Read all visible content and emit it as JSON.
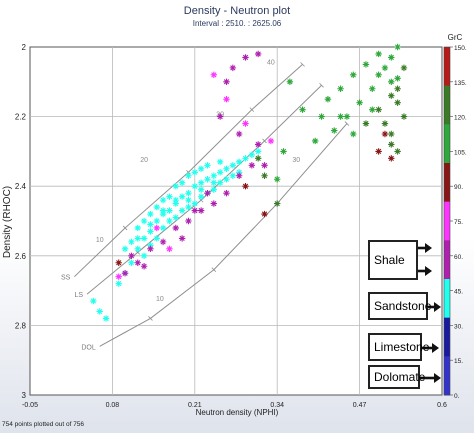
{
  "chart_data": {
    "type": "scatter",
    "title": "Density - Neutron plot",
    "subtitle": "Interval : 2510. : 2625.06",
    "xlabel": "Neutron density (NPHI)",
    "ylabel": "Density (RHOC)",
    "xlim": [
      -0.05,
      0.6
    ],
    "ylim": [
      3,
      2
    ],
    "x_ticks": [
      "-0.05",
      "0.08",
      "0.21",
      "0.34",
      "0.47",
      "0.6"
    ],
    "y_ticks": [
      "2",
      "2.2",
      "2.4",
      "2.6",
      "2.8",
      "3"
    ],
    "grid": true,
    "footer": "754 points plotted out of 756",
    "color_scale": {
      "label": "GrC",
      "ticks": [
        "150.",
        "135.",
        "120.",
        "105.",
        "90.",
        "75.",
        "60.",
        "45.",
        "30.",
        "15.",
        "0."
      ],
      "colors": [
        "#b81a1a",
        "#3a7b26",
        "#2ea83a",
        "#8a1515",
        "#ff33ff",
        "#b020b0",
        "#22ffee",
        "#1a1aa0",
        "#3333cc"
      ]
    },
    "lithology_lines": [
      {
        "name": "SS",
        "points": [
          [
            0.02,
            2.66
          ],
          [
            0.1,
            2.52
          ],
          [
            0.2,
            2.36
          ],
          [
            0.3,
            2.18
          ],
          [
            0.38,
            2.05
          ]
        ]
      },
      {
        "name": "LS",
        "points": [
          [
            0.04,
            2.71
          ],
          [
            0.12,
            2.59
          ],
          [
            0.22,
            2.44
          ],
          [
            0.32,
            2.27
          ],
          [
            0.41,
            2.11
          ]
        ]
      },
      {
        "name": "DOL",
        "points": [
          [
            0.06,
            2.86
          ],
          [
            0.14,
            2.78
          ],
          [
            0.24,
            2.64
          ],
          [
            0.34,
            2.45
          ],
          [
            0.45,
            2.22
          ]
        ]
      }
    ],
    "porosity_labels": [
      {
        "text": "10",
        "x": 0.06,
        "y": 2.56
      },
      {
        "text": "20",
        "x": 0.13,
        "y": 2.33
      },
      {
        "text": "30",
        "x": 0.25,
        "y": 2.2
      },
      {
        "text": "40",
        "x": 0.33,
        "y": 2.05
      },
      {
        "text": "10",
        "x": 0.155,
        "y": 2.73
      },
      {
        "text": "30",
        "x": 0.37,
        "y": 2.33
      }
    ],
    "series": [
      {
        "name": "",
        "color": "#22ffee",
        "points": [
          [
            0.05,
            2.73
          ],
          [
            0.06,
            2.76
          ],
          [
            0.07,
            2.78
          ],
          [
            0.09,
            2.68
          ],
          [
            0.1,
            2.65
          ],
          [
            0.11,
            2.62
          ],
          [
            0.12,
            2.58
          ],
          [
            0.13,
            2.6
          ],
          [
            0.13,
            2.55
          ],
          [
            0.14,
            2.53
          ],
          [
            0.14,
            2.57
          ],
          [
            0.15,
            2.5
          ],
          [
            0.15,
            2.55
          ],
          [
            0.16,
            2.48
          ],
          [
            0.16,
            2.52
          ],
          [
            0.17,
            2.47
          ],
          [
            0.17,
            2.5
          ],
          [
            0.18,
            2.44
          ],
          [
            0.18,
            2.49
          ],
          [
            0.19,
            2.43
          ],
          [
            0.19,
            2.47
          ],
          [
            0.2,
            2.42
          ],
          [
            0.2,
            2.46
          ],
          [
            0.21,
            2.4
          ],
          [
            0.21,
            2.45
          ],
          [
            0.22,
            2.39
          ],
          [
            0.22,
            2.43
          ],
          [
            0.23,
            2.38
          ],
          [
            0.23,
            2.42
          ],
          [
            0.24,
            2.37
          ],
          [
            0.24,
            2.41
          ],
          [
            0.25,
            2.36
          ],
          [
            0.25,
            2.39
          ],
          [
            0.26,
            2.35
          ],
          [
            0.26,
            2.38
          ],
          [
            0.27,
            2.34
          ],
          [
            0.27,
            2.37
          ],
          [
            0.28,
            2.33
          ],
          [
            0.28,
            2.36
          ],
          [
            0.29,
            2.32
          ],
          [
            0.3,
            2.31
          ],
          [
            0.31,
            2.3
          ],
          [
            0.12,
            2.52
          ],
          [
            0.14,
            2.48
          ],
          [
            0.16,
            2.44
          ],
          [
            0.18,
            2.4
          ],
          [
            0.2,
            2.37
          ],
          [
            0.22,
            2.35
          ],
          [
            0.11,
            2.56
          ],
          [
            0.13,
            2.5
          ],
          [
            0.15,
            2.46
          ],
          [
            0.17,
            2.43
          ],
          [
            0.19,
            2.39
          ],
          [
            0.21,
            2.36
          ],
          [
            0.23,
            2.34
          ],
          [
            0.25,
            2.33
          ],
          [
            0.1,
            2.58
          ],
          [
            0.12,
            2.55
          ],
          [
            0.14,
            2.51
          ],
          [
            0.16,
            2.47
          ],
          [
            0.18,
            2.45
          ],
          [
            0.2,
            2.44
          ],
          [
            0.22,
            2.41
          ],
          [
            0.24,
            2.39
          ]
        ]
      },
      {
        "name": "",
        "color": "#b020b0",
        "points": [
          [
            0.12,
            2.62
          ],
          [
            0.14,
            2.58
          ],
          [
            0.16,
            2.56
          ],
          [
            0.18,
            2.52
          ],
          [
            0.19,
            2.55
          ],
          [
            0.2,
            2.5
          ],
          [
            0.22,
            2.47
          ],
          [
            0.24,
            2.45
          ],
          [
            0.26,
            2.42
          ],
          [
            0.28,
            2.37
          ],
          [
            0.3,
            2.34
          ],
          [
            0.31,
            2.28
          ],
          [
            0.32,
            2.34
          ],
          [
            0.26,
            2.1
          ],
          [
            0.27,
            2.06
          ],
          [
            0.29,
            2.03
          ],
          [
            0.25,
            2.2
          ],
          [
            0.31,
            2.02
          ],
          [
            0.1,
            2.65
          ],
          [
            0.11,
            2.6
          ],
          [
            0.13,
            2.63
          ],
          [
            0.21,
            2.47
          ],
          [
            0.23,
            2.42
          ],
          [
            0.28,
            2.25
          ]
        ]
      },
      {
        "name": "",
        "color": "#ff33ff",
        "points": [
          [
            0.24,
            2.08
          ],
          [
            0.26,
            2.15
          ],
          [
            0.29,
            2.22
          ],
          [
            0.33,
            2.27
          ],
          [
            0.15,
            2.52
          ],
          [
            0.17,
            2.58
          ],
          [
            0.09,
            2.66
          ]
        ]
      },
      {
        "name": "",
        "color": "#2ea83a",
        "points": [
          [
            0.36,
            2.1
          ],
          [
            0.38,
            2.18
          ],
          [
            0.4,
            2.27
          ],
          [
            0.41,
            2.2
          ],
          [
            0.42,
            2.15
          ],
          [
            0.43,
            2.24
          ],
          [
            0.44,
            2.12
          ],
          [
            0.45,
            2.2
          ],
          [
            0.46,
            2.08
          ],
          [
            0.47,
            2.16
          ],
          [
            0.48,
            2.05
          ],
          [
            0.49,
            2.12
          ],
          [
            0.5,
            2.02
          ],
          [
            0.5,
            2.08
          ],
          [
            0.51,
            2.06
          ],
          [
            0.52,
            2.1
          ],
          [
            0.52,
            2.03
          ],
          [
            0.53,
            2.0
          ],
          [
            0.53,
            2.09
          ],
          [
            0.35,
            2.3
          ],
          [
            0.34,
            2.38
          ],
          [
            0.44,
            2.2
          ],
          [
            0.46,
            2.25
          ],
          [
            0.49,
            2.18
          ]
        ]
      },
      {
        "name": "",
        "color": "#3a7b26",
        "points": [
          [
            0.5,
            2.18
          ],
          [
            0.51,
            2.22
          ],
          [
            0.52,
            2.25
          ],
          [
            0.52,
            2.28
          ],
          [
            0.53,
            2.16
          ],
          [
            0.53,
            2.3
          ],
          [
            0.54,
            2.2
          ],
          [
            0.54,
            2.06
          ],
          [
            0.53,
            2.12
          ],
          [
            0.52,
            2.14
          ],
          [
            0.34,
            2.45
          ],
          [
            0.32,
            2.37
          ],
          [
            0.31,
            2.32
          ],
          [
            0.48,
            2.22
          ]
        ]
      },
      {
        "name": "",
        "color": "#8a1515",
        "points": [
          [
            0.5,
            2.3
          ],
          [
            0.51,
            2.25
          ],
          [
            0.52,
            2.32
          ],
          [
            0.29,
            2.4
          ],
          [
            0.09,
            2.62
          ],
          [
            0.32,
            2.48
          ]
        ]
      }
    ]
  },
  "annotations": [
    {
      "label": "Shale",
      "arrows": 2
    },
    {
      "label": "Sandstone",
      "arrows": 1
    },
    {
      "label": "Limestone",
      "arrows": 1
    },
    {
      "label": "Dolomate",
      "arrows": 1
    }
  ]
}
